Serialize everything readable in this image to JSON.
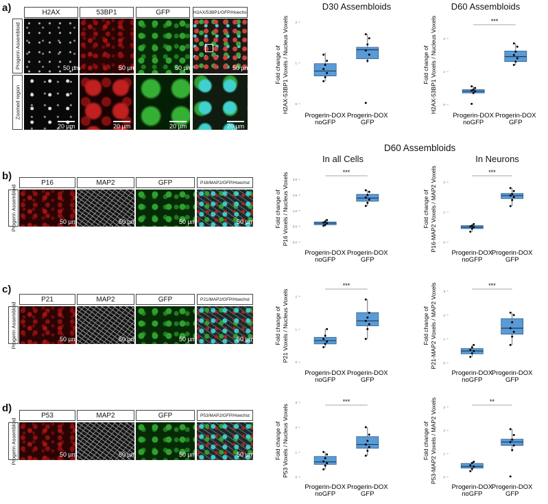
{
  "panel_labels": {
    "a": "a)",
    "b": "b)",
    "c": "c)",
    "d": "d)"
  },
  "panel_a": {
    "headers": [
      "H2AX",
      "53BP1",
      "GFP",
      "H2AX/53BP1/GFP/Hoechst"
    ],
    "row_labels": [
      "Progerin Assembloid",
      "Zoomed region"
    ],
    "scale_top": "50 µm",
    "scale_zoom": "20 µm"
  },
  "panel_b": {
    "headers": [
      "P16",
      "MAP2",
      "GFP",
      "P16/MAP2/GFP/Hoechst"
    ],
    "row_label": "Progerin Assembloid",
    "scale": "50 µm"
  },
  "panel_c": {
    "headers": [
      "P21",
      "MAP2",
      "GFP",
      "P21/MAP2/GFP/Hoechst"
    ],
    "row_label": "Progerin Assembloid",
    "scale": "50 µm"
  },
  "panel_d": {
    "headers": [
      "P53",
      "MAP2",
      "GFP",
      "P53/MAP2/GFP/Hoechst"
    ],
    "row_label": "Progerin Assembloid",
    "scale": "50 µm"
  },
  "section_title": "D60 Assembloids",
  "chart_data": [
    {
      "id": "d30",
      "type": "box",
      "title": "D30 Assembloids",
      "ylabel": [
        "Fold change of",
        "H2AX-53BP1 Voxels / Nucleus Voxels"
      ],
      "categories": [
        [
          "Progerin-DOX",
          "noGFP"
        ],
        [
          "Progerin-DOX",
          "GFP"
        ]
      ],
      "ylim": [
        -0.1,
        2.0
      ],
      "yticks": [
        0,
        1,
        2
      ],
      "significance": "",
      "boxes": [
        {
          "q1": 0.68,
          "median": 0.8,
          "q3": 0.98,
          "whisker_low": 0.55,
          "whisker_high": 1.25,
          "points": [
            0.55,
            0.65,
            0.75,
            0.85,
            0.95,
            1.05,
            1.2
          ]
        },
        {
          "q1": 1.1,
          "median": 1.32,
          "q3": 1.38,
          "whisker_low": 1.0,
          "whisker_high": 1.7,
          "points": [
            0.02,
            1.05,
            1.2,
            1.3,
            1.45,
            1.6,
            1.7
          ]
        }
      ]
    },
    {
      "id": "d60",
      "type": "box",
      "title": "D60 Assembloids",
      "ylabel": [
        "Fold change of",
        "H2AX-53BP1 Voxels / Nucleus Voxels"
      ],
      "categories": [
        [
          "Progerin-DOX",
          "noGFP"
        ],
        [
          "Progerin-DOX",
          "GFP"
        ]
      ],
      "ylim": [
        -0.1,
        2.5
      ],
      "yticks": [
        0,
        1,
        2
      ],
      "significance": "***",
      "boxes": [
        {
          "q1": 0.35,
          "median": 0.4,
          "q3": 0.45,
          "whisker_low": 0.3,
          "whisker_high": 0.55,
          "points": [
            0.02,
            0.35,
            0.4,
            0.42,
            0.45,
            0.5,
            0.55
          ]
        },
        {
          "q1": 1.3,
          "median": 1.45,
          "q3": 1.62,
          "whisker_low": 1.2,
          "whisker_high": 1.85,
          "points": [
            1.2,
            1.3,
            1.4,
            1.5,
            1.6,
            1.75,
            1.85
          ]
        }
      ]
    },
    {
      "id": "p16all",
      "type": "box",
      "title": "In all Cells",
      "ylabel": [
        "Fold change of",
        "P16 Voxels / Nucleus Voxels"
      ],
      "categories": [
        [
          "Progerin-DOX",
          "noGFP"
        ],
        [
          "Progerin-DOX",
          "GFP"
        ]
      ],
      "ylim": [
        -0.1,
        2.2
      ],
      "yticks": [
        0.0,
        0.5,
        1.0,
        1.5,
        2.0
      ],
      "significance": "***",
      "boxes": [
        {
          "q1": 0.55,
          "median": 0.6,
          "q3": 0.64,
          "whisker_low": 0.5,
          "whisker_high": 0.72,
          "points": [
            0.52,
            0.55,
            0.6,
            0.62,
            0.65,
            0.7
          ]
        },
        {
          "q1": 1.3,
          "median": 1.4,
          "q3": 1.52,
          "whisker_low": 1.15,
          "whisker_high": 1.65,
          "points": [
            1.15,
            1.25,
            1.35,
            1.42,
            1.5,
            1.6,
            1.65
          ]
        }
      ]
    },
    {
      "id": "p16neu",
      "type": "box",
      "title": "In Neurons",
      "ylabel": [
        "Fold change of",
        "P16-MAP2 Voxels / MAP2 Voxels"
      ],
      "categories": [
        [
          "Progerin-DOX",
          "noGFP"
        ],
        [
          "Progerin-DOX",
          "GFP"
        ]
      ],
      "ylim": [
        -0.1,
        2.3
      ],
      "yticks": [
        0,
        1,
        2
      ],
      "significance": "***",
      "boxes": [
        {
          "q1": 0.45,
          "median": 0.5,
          "q3": 0.55,
          "whisker_low": 0.35,
          "whisker_high": 0.6,
          "points": [
            0.35,
            0.45,
            0.5,
            0.52,
            0.55,
            0.6
          ]
        },
        {
          "q1": 1.45,
          "median": 1.55,
          "q3": 1.62,
          "whisker_low": 1.2,
          "whisker_high": 1.8,
          "points": [
            1.2,
            1.4,
            1.5,
            1.55,
            1.6,
            1.7,
            1.8
          ]
        }
      ]
    },
    {
      "id": "p21all",
      "type": "box",
      "title": "",
      "ylabel": [
        "Fold change of",
        "P21 Voxels / Nucleus Voxels"
      ],
      "categories": [
        [
          "Progerin-DOX",
          "noGFP"
        ],
        [
          "Progerin-DOX",
          "GFP"
        ]
      ],
      "ylim": [
        -0.1,
        2.3
      ],
      "yticks": [
        0,
        1,
        2
      ],
      "significance": "***",
      "boxes": [
        {
          "q1": 0.55,
          "median": 0.65,
          "q3": 0.75,
          "whisker_low": 0.45,
          "whisker_high": 1.0,
          "points": [
            0.45,
            0.55,
            0.62,
            0.7,
            0.8,
            1.0
          ]
        },
        {
          "q1": 1.1,
          "median": 1.25,
          "q3": 1.5,
          "whisker_low": 0.7,
          "whisker_high": 1.9,
          "points": [
            0.7,
            1.0,
            1.15,
            1.25,
            1.35,
            1.5,
            1.9
          ]
        }
      ]
    },
    {
      "id": "p21neu",
      "type": "box",
      "title": "",
      "ylabel": [
        "Fold change of",
        "P21-MAP2 Voxels / MAP2 Voxels"
      ],
      "categories": [
        [
          "Progerin-DOX",
          "noGFP"
        ],
        [
          "Progerin-DOX",
          "GFP"
        ]
      ],
      "ylim": [
        -0.1,
        3.2
      ],
      "yticks": [
        0,
        1,
        2,
        3
      ],
      "significance": "***",
      "boxes": [
        {
          "q1": 0.38,
          "median": 0.5,
          "q3": 0.6,
          "whisker_low": 0.25,
          "whisker_high": 0.75,
          "points": [
            0.25,
            0.4,
            0.5,
            0.55,
            0.65,
            0.75
          ]
        },
        {
          "q1": 1.2,
          "median": 1.45,
          "q3": 1.85,
          "whisker_low": 0.75,
          "whisker_high": 2.1,
          "points": [
            0.75,
            1.1,
            1.3,
            1.45,
            1.7,
            2.0,
            2.1
          ]
        }
      ]
    },
    {
      "id": "p53all",
      "type": "box",
      "title": "",
      "ylabel": [
        "Fold change of",
        "P53 Voxels / Nucleus Voxels"
      ],
      "categories": [
        [
          "Progerin-DOX",
          "noGFP"
        ],
        [
          "Progerin-DOX",
          "GFP"
        ]
      ],
      "ylim": [
        -0.1,
        3.0
      ],
      "yticks": [
        0,
        1,
        2,
        3
      ],
      "significance": "***",
      "boxes": [
        {
          "q1": 0.5,
          "median": 0.6,
          "q3": 0.82,
          "whisker_low": 0.3,
          "whisker_high": 1.0,
          "points": [
            0.3,
            0.45,
            0.55,
            0.62,
            0.75,
            0.9,
            1.0
          ]
        },
        {
          "q1": 1.15,
          "median": 1.3,
          "q3": 1.62,
          "whisker_low": 0.85,
          "whisker_high": 2.0,
          "points": [
            0.85,
            1.05,
            1.2,
            1.3,
            1.45,
            1.7,
            2.0
          ]
        }
      ]
    },
    {
      "id": "p53neu",
      "type": "box",
      "title": "",
      "ylabel": [
        "Fold change of",
        "P53-MAP2 Voxels / MAP2 Voxels"
      ],
      "categories": [
        [
          "Progerin-DOX",
          "noGFP"
        ],
        [
          "Progerin-DOX",
          "GFP"
        ]
      ],
      "ylim": [
        -0.1,
        3.2
      ],
      "yticks": [
        0,
        1,
        2,
        3
      ],
      "significance": "**",
      "boxes": [
        {
          "q1": 0.38,
          "median": 0.45,
          "q3": 0.58,
          "whisker_low": 0.25,
          "whisker_high": 0.65,
          "points": [
            0.25,
            0.35,
            0.45,
            0.5,
            0.6,
            0.65
          ]
        },
        {
          "q1": 1.35,
          "median": 1.5,
          "q3": 1.62,
          "whisker_low": 1.15,
          "whisker_high": 2.05,
          "points": [
            0.02,
            1.15,
            1.35,
            1.5,
            1.6,
            1.8,
            2.05
          ]
        }
      ]
    }
  ],
  "colors": {
    "box_fill": "#5b9bd5",
    "box_stroke": "#2e5e8c"
  }
}
